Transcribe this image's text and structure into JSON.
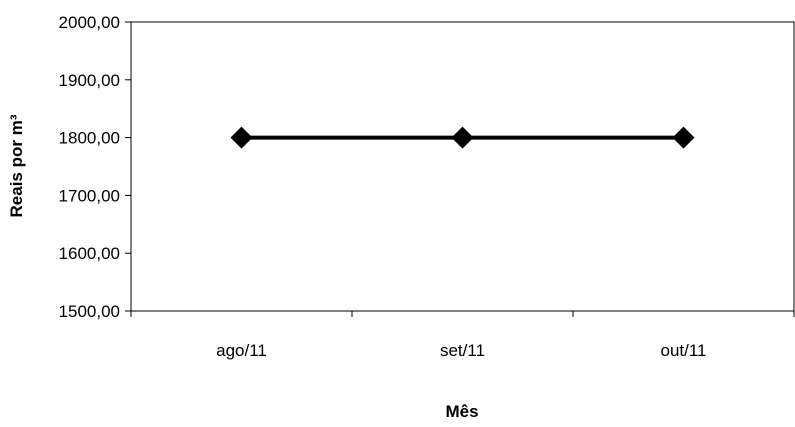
{
  "chart_data": {
    "type": "line",
    "title": "",
    "xlabel": "Mês",
    "ylabel": "Reais por  m³",
    "categories": [
      "ago/11",
      "set/11",
      "out/11"
    ],
    "series": [
      {
        "values": [
          1800,
          1800,
          1800
        ],
        "color": "#000000",
        "marker": "diamond"
      }
    ],
    "ylim": [
      1500,
      2000
    ],
    "yticks": [
      1500,
      1600,
      1700,
      1800,
      1900,
      2000
    ],
    "ytick_labels": [
      "1500,00",
      "1600,00",
      "1700,00",
      "1800,00",
      "1900,00",
      "2000,00"
    ],
    "grid": false,
    "legend": "none"
  }
}
